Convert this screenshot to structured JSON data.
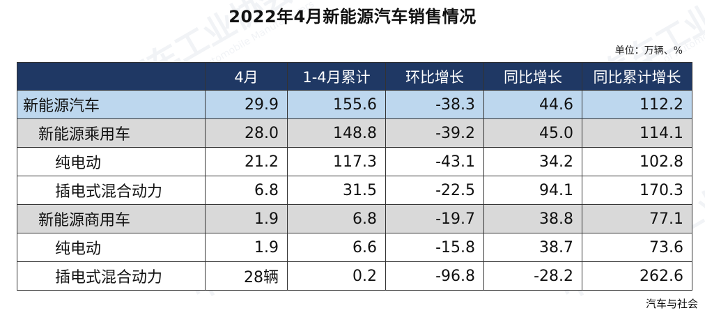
{
  "title": "2022年4月新能源汽车销售情况",
  "unit_label": "单位：万辆、%",
  "watermark_text": "中国汽车工业协会",
  "watermark_sub": "China Association of Automobile Manufacturers",
  "source": "汽车与社会",
  "colors": {
    "header_bg": "#1f3864",
    "header_text": "#ffffff",
    "row_blue": "#bdd7ee",
    "row_gray": "#d9d9d9",
    "row_white": "#ffffff"
  },
  "chart_data": {
    "type": "table",
    "title": "2022年4月新能源汽车销售情况",
    "unit": "单位：万辆、%",
    "columns": [
      "",
      "4月",
      "1-4月累计",
      "环比增长",
      "同比增长",
      "同比累计增长"
    ],
    "rows": [
      {
        "label": "新能源汽车",
        "level": 0,
        "shade": "blue",
        "values": [
          "29.9",
          "155.6",
          "-38.3",
          "44.6",
          "112.2"
        ]
      },
      {
        "label": "新能源乘用车",
        "level": 1,
        "shade": "gray",
        "values": [
          "28.0",
          "148.8",
          "-39.2",
          "45.0",
          "114.1"
        ]
      },
      {
        "label": "纯电动",
        "level": 2,
        "shade": "white",
        "values": [
          "21.2",
          "117.3",
          "-43.1",
          "34.2",
          "102.8"
        ]
      },
      {
        "label": "插电式混合动力",
        "level": 2,
        "shade": "white",
        "values": [
          "6.8",
          "31.5",
          "-22.5",
          "94.1",
          "170.3"
        ]
      },
      {
        "label": "新能源商用车",
        "level": 1,
        "shade": "gray",
        "values": [
          "1.9",
          "6.8",
          "-19.7",
          "38.8",
          "77.1"
        ]
      },
      {
        "label": "纯电动",
        "level": 2,
        "shade": "white",
        "values": [
          "1.9",
          "6.6",
          "-15.8",
          "38.7",
          "73.6"
        ]
      },
      {
        "label": "插电式混合动力",
        "level": 2,
        "shade": "white",
        "values": [
          "28辆",
          "0.2",
          "-96.8",
          "-28.2",
          "262.6"
        ]
      }
    ]
  }
}
